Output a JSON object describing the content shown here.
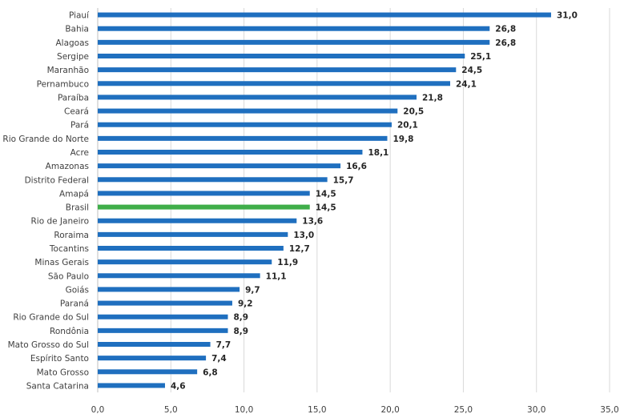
{
  "chart_data": {
    "type": "bar",
    "orientation": "horizontal",
    "categories": [
      "Piauí",
      "Bahia",
      "Alagoas",
      "Sergipe",
      "Maranhão",
      "Pernambuco",
      "Paraíba",
      "Ceará",
      "Pará",
      "Rio Grande do Norte",
      "Acre",
      "Amazonas",
      "Distrito Federal",
      "Amapá",
      "Brasil",
      "Rio de Janeiro",
      "Roraima",
      "Tocantins",
      "Minas Gerais",
      "São Paulo",
      "Goiás",
      "Paraná",
      "Rio Grande do Sul",
      "Rondônia",
      "Mato Grosso do Sul",
      "Espírito Santo",
      "Mato Grosso",
      "Santa Catarina"
    ],
    "values": [
      31.0,
      26.8,
      26.8,
      25.1,
      24.5,
      24.1,
      21.8,
      20.5,
      20.1,
      19.8,
      18.1,
      16.6,
      15.7,
      14.5,
      14.5,
      13.6,
      13.0,
      12.7,
      11.9,
      11.1,
      9.7,
      9.2,
      8.9,
      8.9,
      7.7,
      7.4,
      6.8,
      4.6
    ],
    "value_labels": [
      "31,0",
      "26,8",
      "26,8",
      "25,1",
      "24,5",
      "24,1",
      "21,8",
      "20,5",
      "20,1",
      "19,8",
      "18,1",
      "16,6",
      "15,7",
      "14,5",
      "14,5",
      "13,6",
      "13,0",
      "12,7",
      "11,9",
      "11,1",
      "9,7",
      "9,2",
      "8,9",
      "8,9",
      "7,7",
      "7,4",
      "6,8",
      "4,6"
    ],
    "xlim": [
      0,
      35
    ],
    "xticks": [
      0,
      5,
      10,
      15,
      20,
      25,
      30,
      35
    ],
    "xtick_labels": [
      "0,0",
      "5,0",
      "10,0",
      "15,0",
      "20,0",
      "25,0",
      "30,0",
      "35,0"
    ],
    "title": "",
    "xlabel": "",
    "ylabel": "",
    "grid": "vertical",
    "legend": "none",
    "colors": {
      "bar": "#1f6fbf",
      "highlight": "#3fae49",
      "highlight_category": "Brasil"
    }
  }
}
